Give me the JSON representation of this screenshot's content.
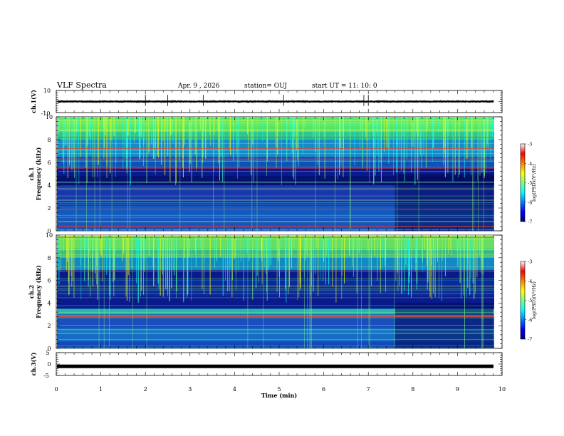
{
  "header": {
    "title": "VLF Spectra",
    "date": "Apr. 9  , 2026",
    "station": "station= OUJ",
    "start": "start  UT =   11: 10: 0"
  },
  "colors": {
    "spectrogram_background": "#0a1a8c",
    "waveform": "#000000",
    "colormap": [
      "#00007f",
      "#0000ff",
      "#007fff",
      "#00ffff",
      "#7fff7f",
      "#ffff00",
      "#ff7f00",
      "#ff0000",
      "#7f0000"
    ]
  },
  "chart_data": [
    {
      "type": "line",
      "name": "ch1-waveform",
      "ylabel": "ch.1(V)",
      "ylim": [
        -10,
        10
      ],
      "ytick_labels": [
        "10",
        "-10"
      ],
      "baseline_v": 0,
      "band_v": [
        -1.2,
        1.2
      ],
      "description_series": "noise waveform around 0 V with isolated spikes",
      "spikes_min": [
        2.0,
        2.5,
        3.3,
        5.1,
        6.9,
        7.0
      ]
    },
    {
      "type": "heatmap",
      "name": "ch1-spectrogram",
      "ylabel_channel": "ch.1",
      "ylabel": "Frequency (kHz)",
      "ylim": [
        0,
        10
      ],
      "xlim": [
        0,
        10
      ],
      "ytick_labels": [
        "0",
        "2",
        "4",
        "6",
        "8",
        "10"
      ],
      "strong_lines_khz": [
        0.4,
        1.9,
        5.5,
        6.3,
        7.2,
        8.2
      ],
      "colorbar": {
        "label": "log(PSD)(V²/Hz)",
        "range": [
          -7,
          -3
        ],
        "tick_labels": [
          "-3",
          "-4",
          "-5",
          "-6",
          "-7"
        ]
      }
    },
    {
      "type": "heatmap",
      "name": "ch2-spectrogram",
      "ylabel_channel": "ch.2",
      "ylabel": "Frequency (kHz)",
      "ylim": [
        0,
        10
      ],
      "xlim": [
        0,
        10
      ],
      "ytick_labels": [
        "0",
        "2",
        "4",
        "6",
        "8",
        "10"
      ],
      "strong_lines_khz": [
        2.8,
        6.8,
        9.8
      ],
      "colorbar": {
        "label": "log(PSD)(V²/Hz)",
        "range": [
          -7,
          -3
        ],
        "tick_labels": [
          "-3",
          "-4",
          "-5",
          "-6",
          "-7"
        ]
      }
    },
    {
      "type": "line",
      "name": "ch3-waveform",
      "ylabel": "ch.3(V)",
      "ylim": [
        -5,
        5
      ],
      "ytick_labels": [
        "5",
        "0",
        "-5"
      ],
      "constant_v": -1,
      "xlabel": "Time (min)",
      "xlim": [
        0,
        10
      ],
      "xtick_labels": [
        "0",
        "1",
        "2",
        "3",
        "4",
        "5",
        "6",
        "7",
        "8",
        "9",
        "10"
      ]
    }
  ]
}
